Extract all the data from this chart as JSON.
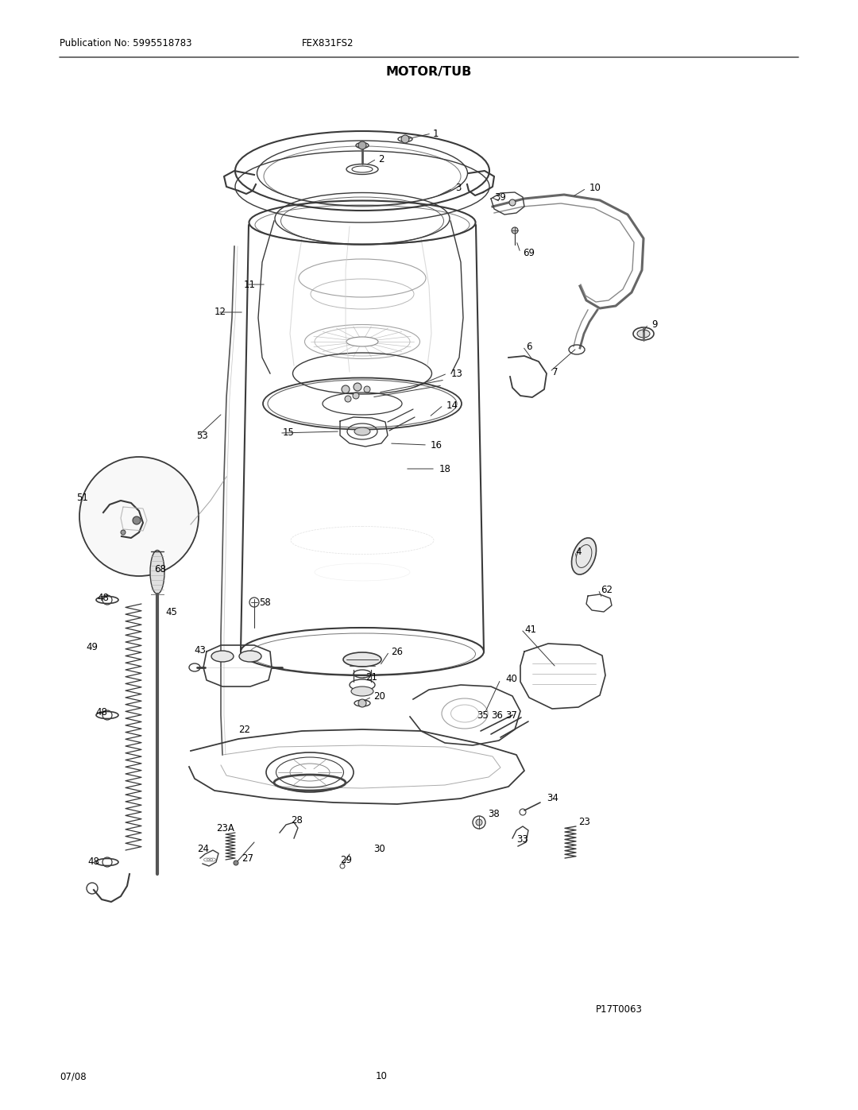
{
  "page_title": "MOTOR/TUB",
  "pub_no": "Publication No: 5995518783",
  "model": "FEX831FS2",
  "page_num": "10",
  "date": "07/08",
  "ref_code": "P17T0063",
  "bg_color": "#ffffff",
  "line_color": "#3a3a3a",
  "text_color": "#000000",
  "label_fontsize": 8.5,
  "body_fontsize": 8.0,
  "title_fontsize": 11.5
}
